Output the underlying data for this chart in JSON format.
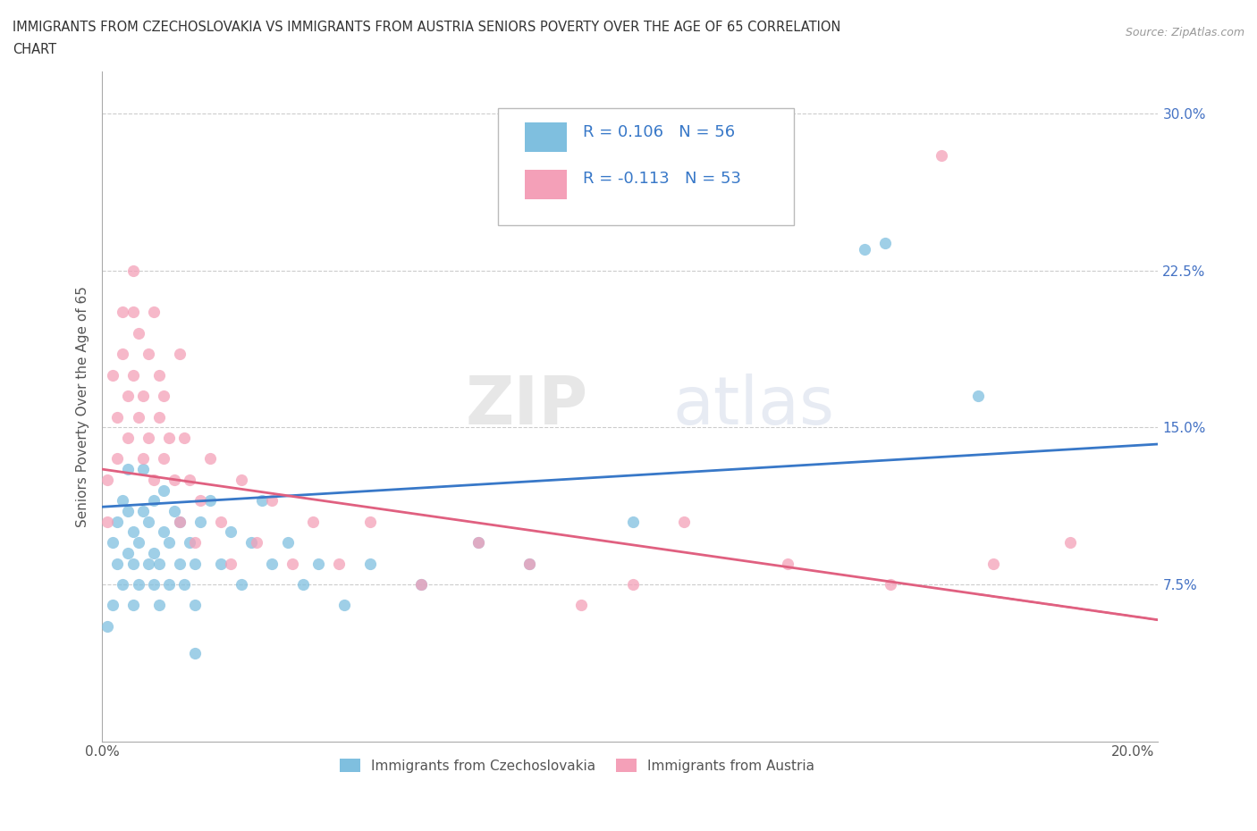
{
  "title_line1": "IMMIGRANTS FROM CZECHOSLOVAKIA VS IMMIGRANTS FROM AUSTRIA SENIORS POVERTY OVER THE AGE OF 65 CORRELATION",
  "title_line2": "CHART",
  "source": "Source: ZipAtlas.com",
  "ylabel": "Seniors Poverty Over the Age of 65",
  "xlim": [
    0.0,
    0.205
  ],
  "ylim": [
    0.0,
    0.32
  ],
  "R_czech": 0.106,
  "N_czech": 56,
  "R_austria": -0.113,
  "N_austria": 53,
  "blue_color": "#7fbfdf",
  "pink_color": "#f4a0b8",
  "blue_line_color": "#3878c8",
  "pink_line_color": "#e06080",
  "grid_color": "#cccccc",
  "legend_label_czech": "Immigrants from Czechoslovakia",
  "legend_label_austria": "Immigrants from Austria",
  "czech_x": [
    0.001,
    0.002,
    0.002,
    0.003,
    0.003,
    0.004,
    0.004,
    0.005,
    0.005,
    0.005,
    0.006,
    0.006,
    0.006,
    0.007,
    0.007,
    0.008,
    0.008,
    0.009,
    0.009,
    0.01,
    0.01,
    0.01,
    0.011,
    0.011,
    0.012,
    0.012,
    0.013,
    0.013,
    0.014,
    0.015,
    0.015,
    0.016,
    0.017,
    0.018,
    0.018,
    0.019,
    0.021,
    0.023,
    0.025,
    0.027,
    0.029,
    0.031,
    0.033,
    0.036,
    0.039,
    0.042,
    0.047,
    0.052,
    0.062,
    0.073,
    0.083,
    0.103,
    0.148,
    0.152,
    0.17,
    0.018
  ],
  "czech_y": [
    0.055,
    0.065,
    0.095,
    0.085,
    0.105,
    0.115,
    0.075,
    0.09,
    0.11,
    0.13,
    0.065,
    0.085,
    0.1,
    0.075,
    0.095,
    0.11,
    0.13,
    0.085,
    0.105,
    0.075,
    0.09,
    0.115,
    0.065,
    0.085,
    0.1,
    0.12,
    0.075,
    0.095,
    0.11,
    0.085,
    0.105,
    0.075,
    0.095,
    0.065,
    0.085,
    0.105,
    0.115,
    0.085,
    0.1,
    0.075,
    0.095,
    0.115,
    0.085,
    0.095,
    0.075,
    0.085,
    0.065,
    0.085,
    0.075,
    0.095,
    0.085,
    0.105,
    0.235,
    0.238,
    0.165,
    0.042
  ],
  "austria_x": [
    0.001,
    0.001,
    0.002,
    0.003,
    0.003,
    0.004,
    0.004,
    0.005,
    0.005,
    0.006,
    0.006,
    0.006,
    0.007,
    0.007,
    0.008,
    0.008,
    0.009,
    0.009,
    0.01,
    0.01,
    0.011,
    0.011,
    0.012,
    0.012,
    0.013,
    0.014,
    0.015,
    0.015,
    0.016,
    0.017,
    0.018,
    0.019,
    0.021,
    0.023,
    0.025,
    0.027,
    0.03,
    0.033,
    0.037,
    0.041,
    0.046,
    0.052,
    0.062,
    0.073,
    0.083,
    0.093,
    0.103,
    0.113,
    0.133,
    0.153,
    0.163,
    0.173,
    0.188
  ],
  "austria_y": [
    0.105,
    0.125,
    0.175,
    0.155,
    0.135,
    0.205,
    0.185,
    0.165,
    0.145,
    0.225,
    0.205,
    0.175,
    0.155,
    0.195,
    0.135,
    0.165,
    0.185,
    0.145,
    0.125,
    0.205,
    0.155,
    0.175,
    0.135,
    0.165,
    0.145,
    0.125,
    0.185,
    0.105,
    0.145,
    0.125,
    0.095,
    0.115,
    0.135,
    0.105,
    0.085,
    0.125,
    0.095,
    0.115,
    0.085,
    0.105,
    0.085,
    0.105,
    0.075,
    0.095,
    0.085,
    0.065,
    0.075,
    0.105,
    0.085,
    0.075,
    0.28,
    0.085,
    0.095
  ],
  "blue_trend_x": [
    0.0,
    0.205
  ],
  "blue_trend_y": [
    0.112,
    0.142
  ],
  "pink_trend_x": [
    0.0,
    0.205
  ],
  "pink_trend_y": [
    0.13,
    0.058
  ],
  "watermark_zip": "ZIP",
  "watermark_atlas": "atlas",
  "ytick_color": "#4472c4",
  "xtick_color": "#555555"
}
